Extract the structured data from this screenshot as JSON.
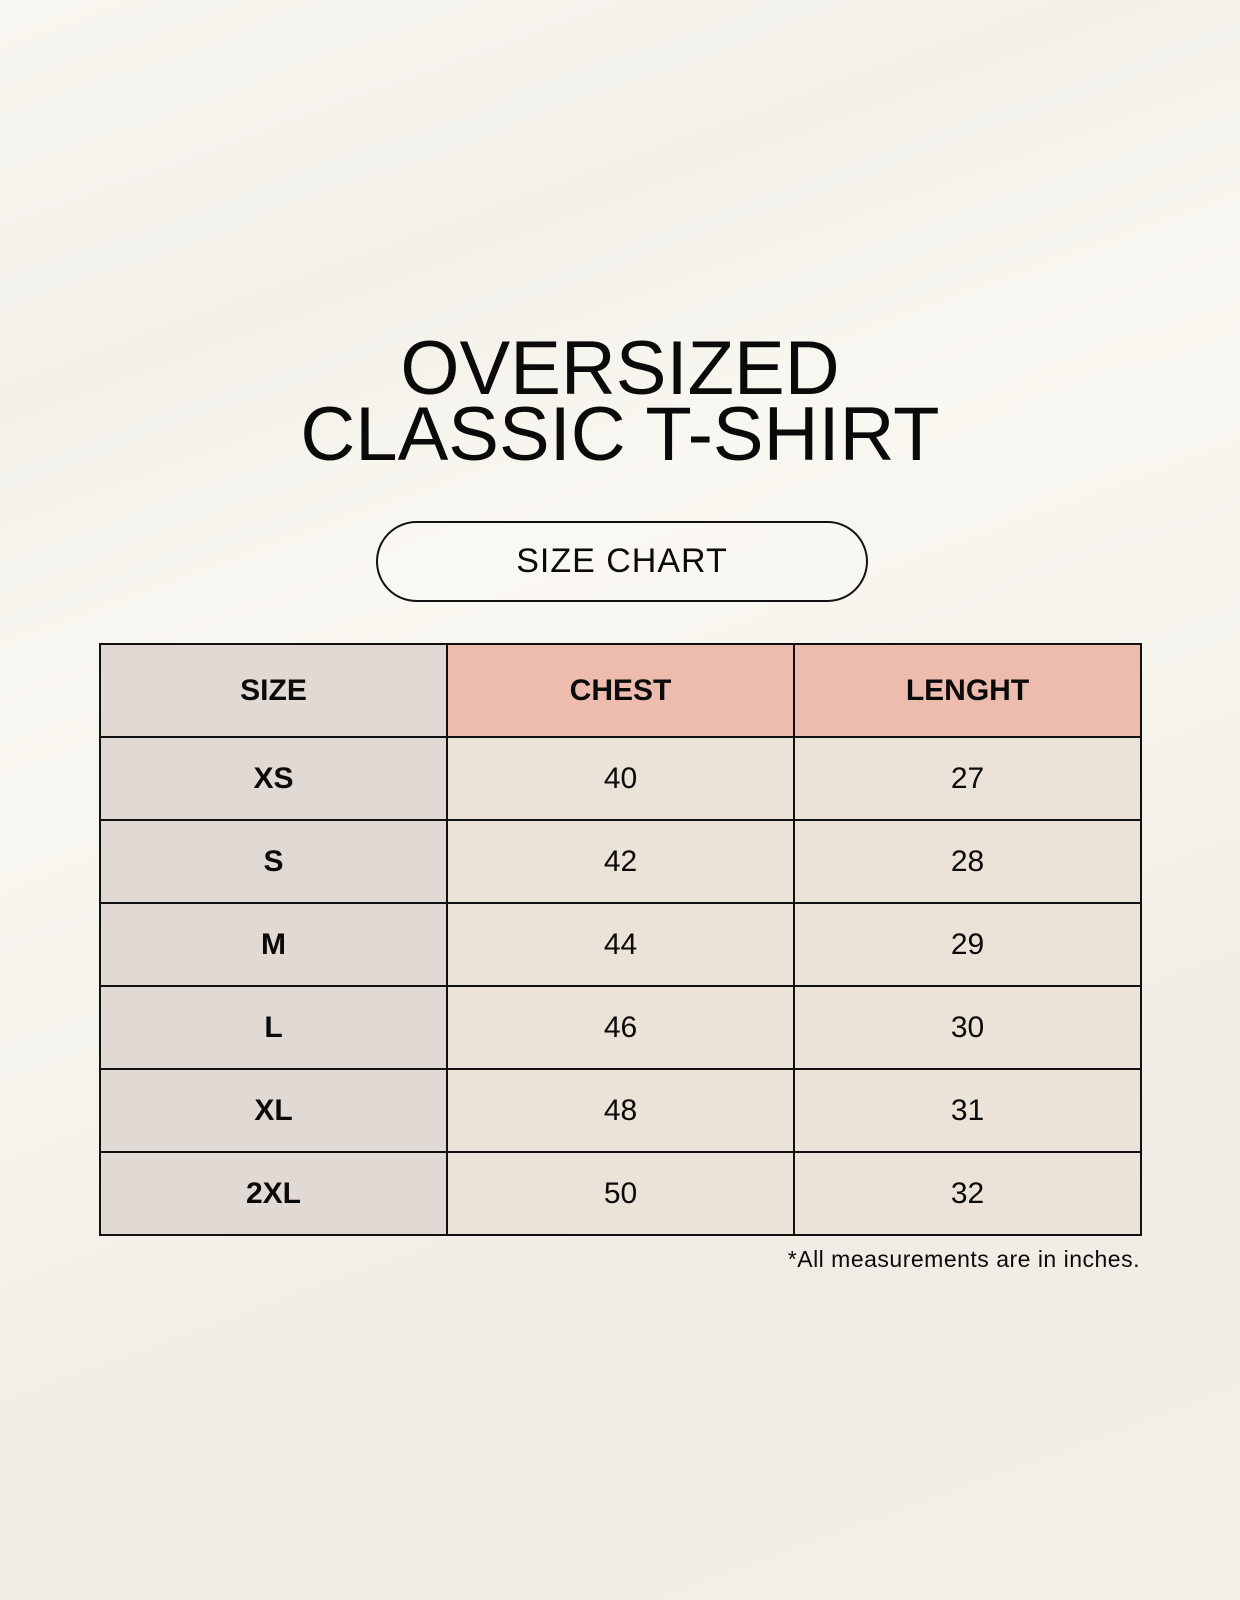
{
  "title": {
    "line1": "OVERSIZED",
    "line2": "CLASSIC T-SHIRT"
  },
  "badge": "SIZE CHART",
  "table": {
    "headers": [
      "SIZE",
      "CHEST",
      "LENGHT"
    ],
    "rows": [
      {
        "size": "XS",
        "chest": "40",
        "length": "27"
      },
      {
        "size": "S",
        "chest": "42",
        "length": "28"
      },
      {
        "size": "M",
        "chest": "44",
        "length": "29"
      },
      {
        "size": "L",
        "chest": "46",
        "length": "30"
      },
      {
        "size": "XL",
        "chest": "48",
        "length": "31"
      },
      {
        "size": "2XL",
        "chest": "50",
        "length": "32"
      }
    ]
  },
  "note": "*All measurements are in inches.",
  "colors": {
    "size_col": "#e1d9d3",
    "header_accent": "#edbcaf",
    "cells": "#ebe3d8"
  }
}
